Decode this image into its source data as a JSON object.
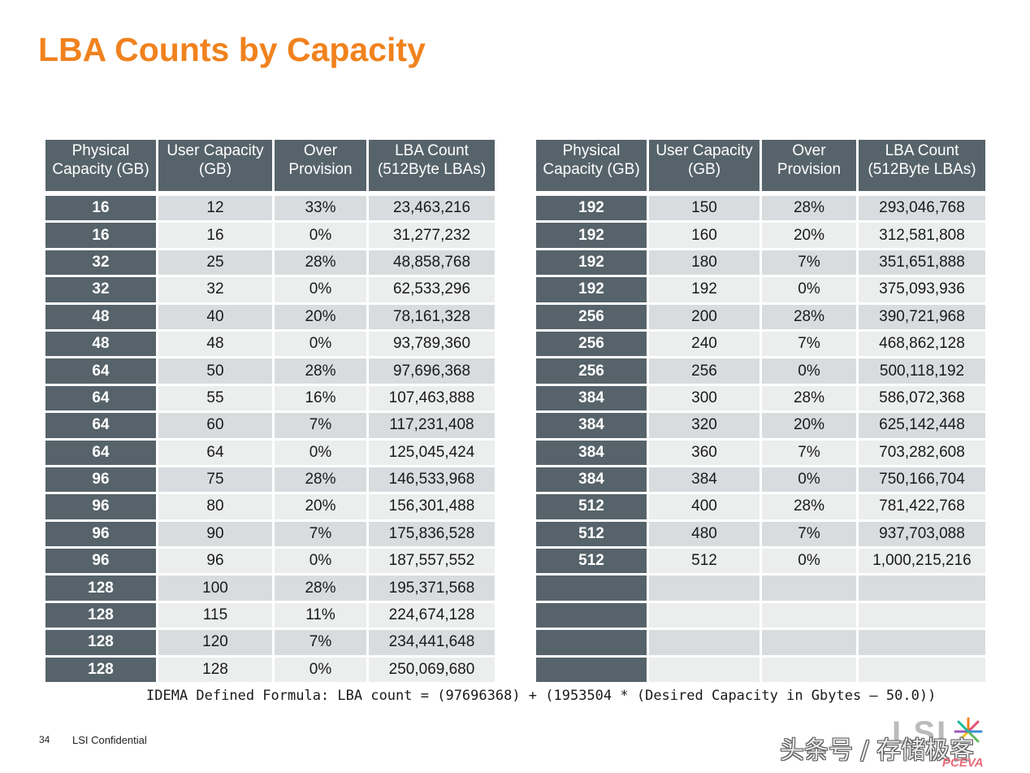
{
  "slide": {
    "title": "LBA Counts by Capacity",
    "formula": "IDEMA Defined Formula: LBA count = (97696368) + (1953504 * (Desired Capacity in Gbytes – 50.0))",
    "page_number": "34",
    "confidential": "LSI Confidential",
    "logo": "LSI",
    "watermark": "头条号 / 存储极客",
    "watermark_site": "PCEVA",
    "colors": {
      "title": "#f0821e",
      "header": "#56636a",
      "row_odd": "#d9dcde",
      "row_even": "#eceeee"
    }
  },
  "tables": {
    "headers": [
      [
        "Physical",
        "Capacity (GB)"
      ],
      [
        "User Capacity",
        "(GB)"
      ],
      [
        "Over",
        "Provision"
      ],
      [
        "LBA Count",
        "(512Byte LBAs)"
      ]
    ],
    "left": [
      [
        "16",
        "12",
        "33%",
        "23,463,216"
      ],
      [
        "16",
        "16",
        "0%",
        "31,277,232"
      ],
      [
        "32",
        "25",
        "28%",
        "48,858,768"
      ],
      [
        "32",
        "32",
        "0%",
        "62,533,296"
      ],
      [
        "48",
        "40",
        "20%",
        "78,161,328"
      ],
      [
        "48",
        "48",
        "0%",
        "93,789,360"
      ],
      [
        "64",
        "50",
        "28%",
        "97,696,368"
      ],
      [
        "64",
        "55",
        "16%",
        "107,463,888"
      ],
      [
        "64",
        "60",
        "7%",
        "117,231,408"
      ],
      [
        "64",
        "64",
        "0%",
        "125,045,424"
      ],
      [
        "96",
        "75",
        "28%",
        "146,533,968"
      ],
      [
        "96",
        "80",
        "20%",
        "156,301,488"
      ],
      [
        "96",
        "90",
        "7%",
        "175,836,528"
      ],
      [
        "96",
        "96",
        "0%",
        "187,557,552"
      ],
      [
        "128",
        "100",
        "28%",
        "195,371,568"
      ],
      [
        "128",
        "115",
        "11%",
        "224,674,128"
      ],
      [
        "128",
        "120",
        "7%",
        "234,441,648"
      ],
      [
        "128",
        "128",
        "0%",
        "250,069,680"
      ]
    ],
    "right": [
      [
        "192",
        "150",
        "28%",
        "293,046,768"
      ],
      [
        "192",
        "160",
        "20%",
        "312,581,808"
      ],
      [
        "192",
        "180",
        "7%",
        "351,651,888"
      ],
      [
        "192",
        "192",
        "0%",
        "375,093,936"
      ],
      [
        "256",
        "200",
        "28%",
        "390,721,968"
      ],
      [
        "256",
        "240",
        "7%",
        "468,862,128"
      ],
      [
        "256",
        "256",
        "0%",
        "500,118,192"
      ],
      [
        "384",
        "300",
        "28%",
        "586,072,368"
      ],
      [
        "384",
        "320",
        "20%",
        "625,142,448"
      ],
      [
        "384",
        "360",
        "7%",
        "703,282,608"
      ],
      [
        "384",
        "384",
        "0%",
        "750,166,704"
      ],
      [
        "512",
        "400",
        "28%",
        "781,422,768"
      ],
      [
        "512",
        "480",
        "7%",
        "937,703,088"
      ],
      [
        "512",
        "512",
        "0%",
        "1,000,215,216"
      ],
      [
        "",
        "",
        "",
        ""
      ],
      [
        "",
        "",
        "",
        ""
      ],
      [
        "",
        "",
        "",
        ""
      ],
      [
        "",
        "",
        "",
        ""
      ]
    ]
  }
}
